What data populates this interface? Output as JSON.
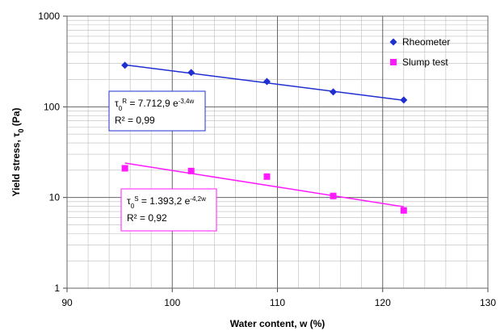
{
  "chart_data": {
    "type": "scatter",
    "y_label": {
      "parts": [
        "Yield stress, τ",
        "0",
        " (Pa)"
      ]
    },
    "x_label": "Water content, w (%)",
    "xlim": [
      90,
      130
    ],
    "xticks": [
      90,
      100,
      110,
      120,
      130
    ],
    "ylim": [
      1,
      1000
    ],
    "yticks": [
      1,
      10,
      100,
      1000
    ],
    "log_y": true,
    "grid": true,
    "minor_grid": true,
    "legend": "upper right",
    "series": [
      {
        "name": "Rheometer",
        "color": "#1f2fd0",
        "marker": "diamond",
        "x": [
          95.5,
          101.8,
          109,
          115.3,
          122
        ],
        "values": [
          287,
          239,
          190,
          146,
          119
        ],
        "trend": {
          "x": [
            95.5,
            122
          ],
          "values": [
            290,
            118
          ]
        },
        "annotation": {
          "lines": [
            [
              "τ",
              "0",
              "R",
              " = 7.712,9 e",
              "-3,4w"
            ],
            [
              "R² = 0,99"
            ]
          ]
        }
      },
      {
        "name": "Slump test",
        "color": "#ff19ff",
        "marker": "square",
        "x": [
          95.5,
          101.8,
          109,
          115.3,
          122
        ],
        "values": [
          21,
          19.6,
          17,
          10.4,
          7.2
        ],
        "trend": {
          "x": [
            95.5,
            122
          ],
          "values": [
            24,
            7.9
          ]
        },
        "annotation": {
          "lines": [
            [
              "τ",
              "0",
              "S",
              " = 1.393,2 e",
              "-4,2w"
            ],
            [
              "R² = 0,92"
            ]
          ]
        }
      }
    ]
  }
}
